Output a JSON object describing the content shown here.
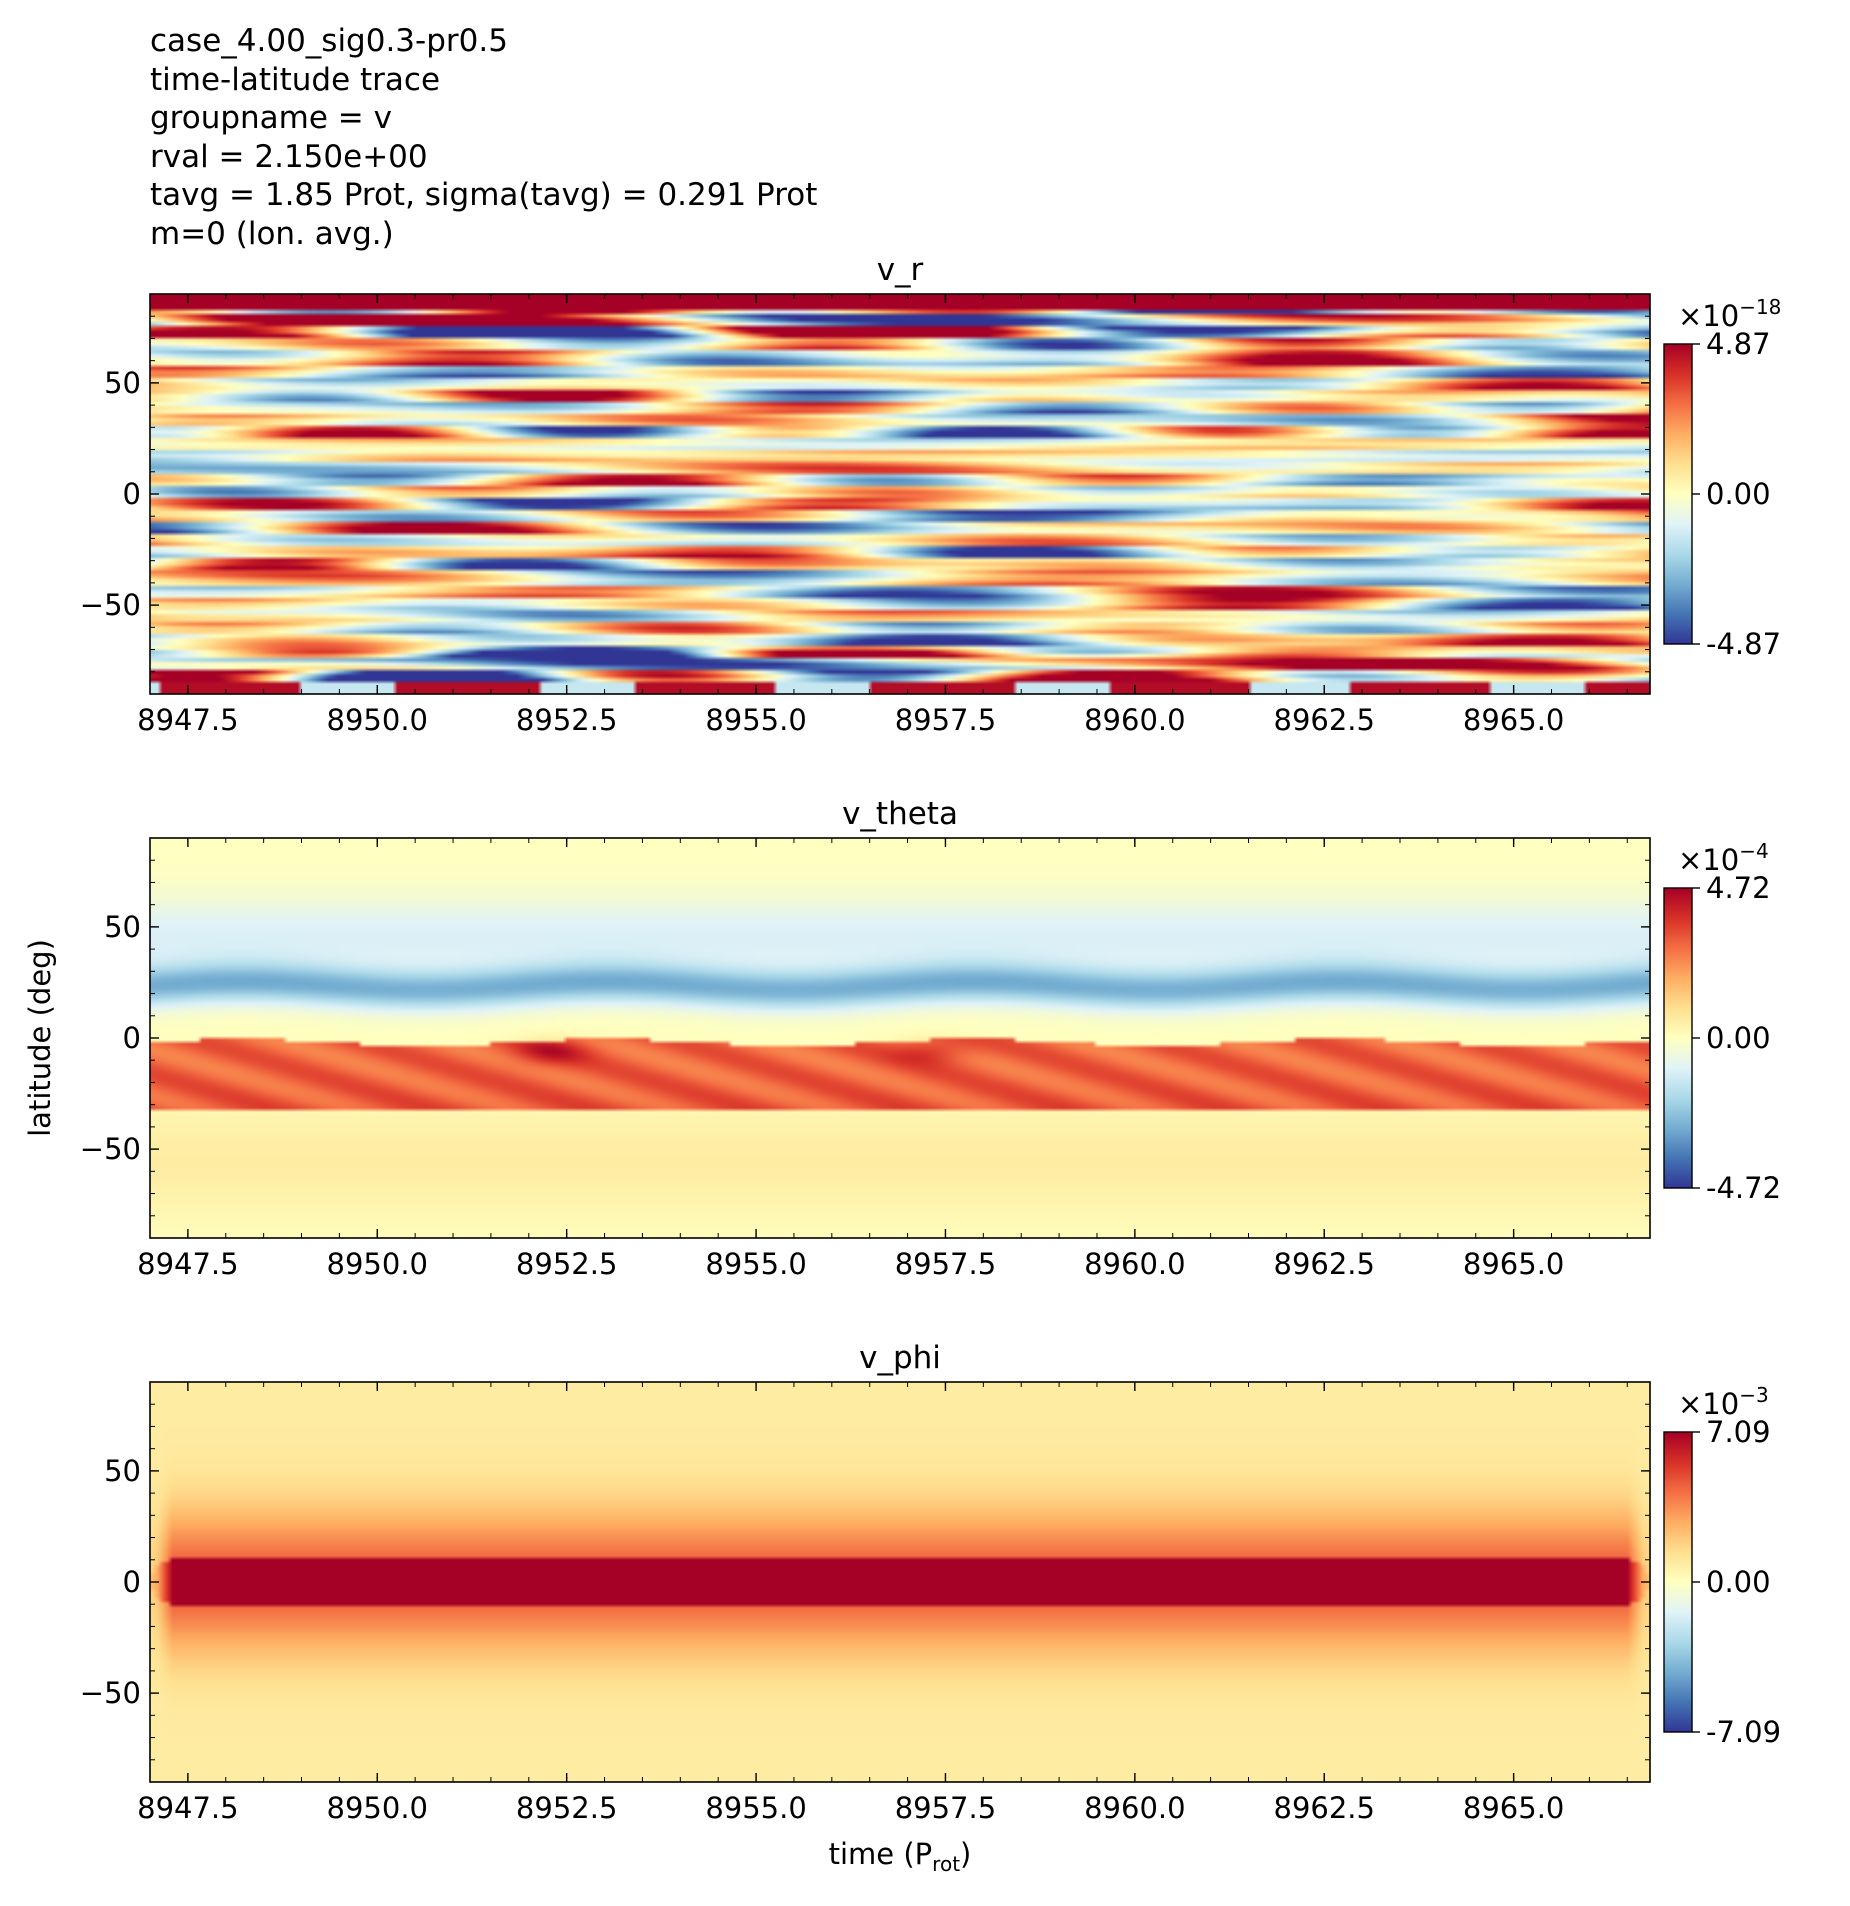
{
  "header": {
    "lines": [
      "case_4.00_sig0.3-pr0.5",
      "time-latitude trace",
      "groupname = v",
      "rval = 2.150e+00",
      "tavg = 1.85 Prot, sigma(tavg) = 0.291 Prot",
      "m=0 (lon. avg.)"
    ]
  },
  "colors": {
    "colormap": "RdYlBu_r",
    "stops": [
      "#313695",
      "#4575b4",
      "#74add1",
      "#abd9e9",
      "#e0f3f8",
      "#ffffbf",
      "#fee090",
      "#fdae61",
      "#f46d43",
      "#d73027",
      "#a50026"
    ]
  },
  "chart_data": [
    {
      "type": "heatmap",
      "title": "v_r",
      "xlabel": "",
      "ylabel": "",
      "xlim": [
        8947.0,
        8966.8
      ],
      "ylim": [
        -90,
        90
      ],
      "xticks": [
        8947.5,
        8950.0,
        8952.5,
        8955.0,
        8957.5,
        8960.0,
        8962.5,
        8965.0
      ],
      "xtick_labels": [
        "8947.5",
        "8950.0",
        "8952.5",
        "8955.0",
        "8957.5",
        "8960.0",
        "8962.5",
        "8965.0"
      ],
      "yticks": [
        50,
        0,
        -50
      ],
      "ytick_labels": [
        "50",
        "0",
        "−50"
      ],
      "colorbar": {
        "min": -4.87,
        "max": 4.87,
        "min_label": "-4.87",
        "mid_label": "0.00",
        "max_label": "4.87",
        "scale_base": "×10",
        "scale_exp": "−18"
      },
      "pattern": "banded"
    },
    {
      "type": "heatmap",
      "title": "v_theta",
      "xlabel": "",
      "ylabel": "latitude (deg)",
      "xlim": [
        8947.0,
        8966.8
      ],
      "ylim": [
        -90,
        90
      ],
      "xticks": [
        8947.5,
        8950.0,
        8952.5,
        8955.0,
        8957.5,
        8960.0,
        8962.5,
        8965.0
      ],
      "xtick_labels": [
        "8947.5",
        "8950.0",
        "8952.5",
        "8955.0",
        "8957.5",
        "8960.0",
        "8962.5",
        "8965.0"
      ],
      "yticks": [
        50,
        0,
        -50
      ],
      "ytick_labels": [
        "50",
        "0",
        "−50"
      ],
      "colorbar": {
        "min": -4.72,
        "max": 4.72,
        "min_label": "-4.72",
        "mid_label": "0.00",
        "max_label": "4.72",
        "scale_base": "×10",
        "scale_exp": "−4"
      },
      "pattern": "theta"
    },
    {
      "type": "heatmap",
      "title": "v_phi",
      "xlabel_main": "time (P",
      "xlabel_sub": "rot",
      "xlabel_end": ")",
      "ylabel": "",
      "xlim": [
        8947.0,
        8966.8
      ],
      "ylim": [
        -90,
        90
      ],
      "xticks": [
        8947.5,
        8950.0,
        8952.5,
        8955.0,
        8957.5,
        8960.0,
        8962.5,
        8965.0
      ],
      "xtick_labels": [
        "8947.5",
        "8950.0",
        "8952.5",
        "8955.0",
        "8957.5",
        "8960.0",
        "8962.5",
        "8965.0"
      ],
      "yticks": [
        50,
        0,
        -50
      ],
      "ytick_labels": [
        "50",
        "0",
        "−50"
      ],
      "colorbar": {
        "min": -7.09,
        "max": 7.09,
        "min_label": "-7.09",
        "mid_label": "0.00",
        "max_label": "7.09",
        "scale_base": "×10",
        "scale_exp": "−3"
      },
      "pattern": "phi"
    }
  ]
}
